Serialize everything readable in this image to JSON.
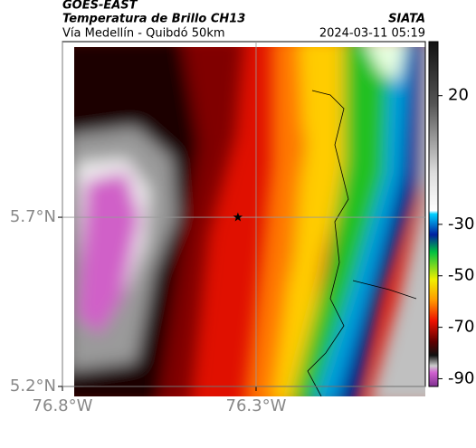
{
  "header": {
    "source": "GOES-EAST",
    "title": "Temperatura de Brillo CH13",
    "agency": "SIATA",
    "subtitle": "Vía Medellín - Quibdó 50km",
    "timestamp": "2024-03-11 05:19"
  },
  "map": {
    "xlim": [
      -76.8,
      -75.863
    ],
    "ylim": [
      5.2,
      6.219
    ],
    "lon_ticks": [
      {
        "value": -76.8,
        "label": "76.8°W"
      },
      {
        "value": -76.3,
        "label": "76.3°W"
      }
    ],
    "lat_ticks": [
      {
        "value": 5.2,
        "label": "5.2°N"
      },
      {
        "value": 5.7,
        "label": "5.7°N"
      }
    ],
    "grid": true,
    "marker": {
      "lon": -76.347,
      "lat": 5.7
    }
  },
  "colorbar": {
    "lim": [
      -93,
      41
    ],
    "ticks": [
      20,
      -30,
      -50,
      -70,
      -90
    ]
  }
}
